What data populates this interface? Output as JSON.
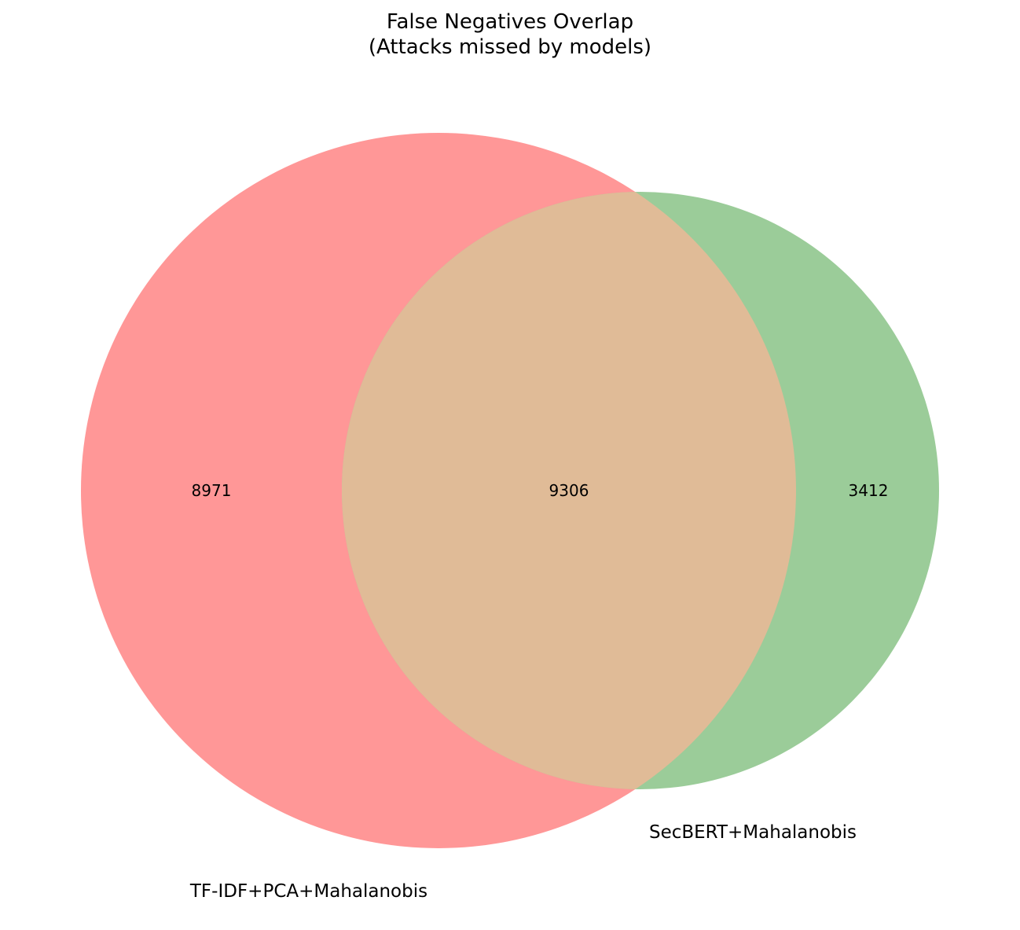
{
  "chart_data": {
    "type": "venn",
    "title_lines": [
      "False Negatives Overlap",
      "(Attacks missed by models)"
    ],
    "sets": [
      {
        "name": "TF-IDF+PCA+Mahalanobis",
        "only": 8971,
        "color": "#ff9797"
      },
      {
        "name": "SecBERT+Mahalanobis",
        "only": 3412,
        "color": "#9bcc99"
      }
    ],
    "intersection": {
      "value": 9306,
      "color": "#e0bb97"
    }
  }
}
